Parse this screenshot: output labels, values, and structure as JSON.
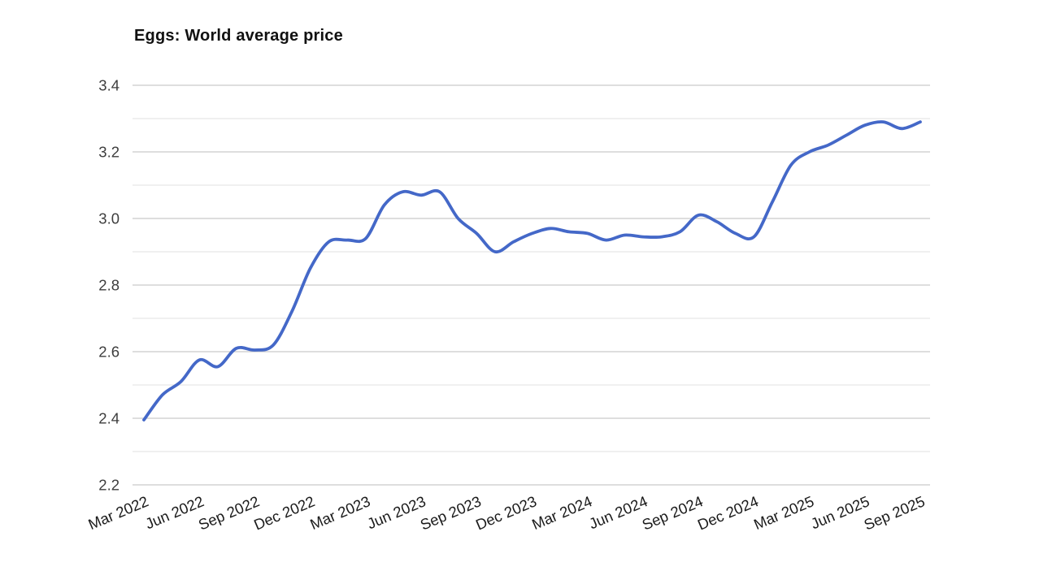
{
  "chart_data": {
    "type": "line",
    "title": "Eggs: World average price",
    "xlabel": "",
    "ylabel": "",
    "legend": "none",
    "grid": true,
    "ylim": [
      2.2,
      3.4
    ],
    "y_ticks": [
      {
        "value": 2.2,
        "label": "2.2"
      },
      {
        "value": 2.4,
        "label": "2.4"
      },
      {
        "value": 2.6,
        "label": "2.6"
      },
      {
        "value": 2.8,
        "label": "2.8"
      },
      {
        "value": 3.0,
        "label": "3.0"
      },
      {
        "value": 3.2,
        "label": "3.2"
      },
      {
        "value": 3.4,
        "label": "3.4"
      }
    ],
    "y_minor_ticks": [
      2.3,
      2.5,
      2.7,
      2.9,
      3.1,
      3.3
    ],
    "x": [
      "Mar 2022",
      "Apr 2022",
      "May 2022",
      "Jun 2022",
      "Jul 2022",
      "Aug 2022",
      "Sep 2022",
      "Oct 2022",
      "Nov 2022",
      "Dec 2022",
      "Jan 2023",
      "Feb 2023",
      "Mar 2023",
      "Apr 2023",
      "May 2023",
      "Jun 2023",
      "Jul 2023",
      "Aug 2023",
      "Sep 2023",
      "Oct 2023",
      "Nov 2023",
      "Dec 2023",
      "Jan 2024",
      "Feb 2024",
      "Mar 2024",
      "Apr 2024",
      "May 2024",
      "Jun 2024",
      "Jul 2024",
      "Aug 2024",
      "Sep 2024",
      "Oct 2024",
      "Nov 2024",
      "Dec 2024",
      "Jan 2025",
      "Feb 2025",
      "Mar 2025",
      "Apr 2025",
      "May 2025",
      "Jun 2025",
      "Jul 2025",
      "Aug 2025",
      "Sep 2025"
    ],
    "x_tick_every_n": 3,
    "x_tick_labels": [
      "Mar 2022",
      "Jun 2022",
      "Sep 2022",
      "Dec 2022",
      "Mar 2023",
      "Jun 2023",
      "Sep 2023",
      "Dec 2023",
      "Mar 2024",
      "Jun 2024",
      "Sep 2024",
      "Dec 2024",
      "Mar 2025",
      "Jun 2025",
      "Sep 2025"
    ],
    "series": [
      {
        "name": "Eggs world average price",
        "values": [
          2.395,
          2.47,
          2.51,
          2.575,
          2.555,
          2.61,
          2.605,
          2.62,
          2.72,
          2.85,
          2.93,
          2.935,
          2.94,
          3.04,
          3.08,
          3.07,
          3.08,
          3.0,
          2.955,
          2.9,
          2.93,
          2.955,
          2.97,
          2.96,
          2.955,
          2.935,
          2.95,
          2.945,
          2.945,
          2.96,
          3.01,
          2.99,
          2.955,
          2.945,
          3.05,
          3.16,
          3.2,
          3.22,
          3.25,
          3.28,
          3.29,
          3.27,
          3.29
        ]
      }
    ],
    "colors": {
      "line": "#4468c8",
      "grid_major": "#c9c9c9",
      "grid_minor": "#e8e8e8",
      "y_tick_label": "#3d3d3d",
      "x_tick_label": "#1a1a1a",
      "title": "#111111",
      "background": "#ffffff"
    }
  }
}
